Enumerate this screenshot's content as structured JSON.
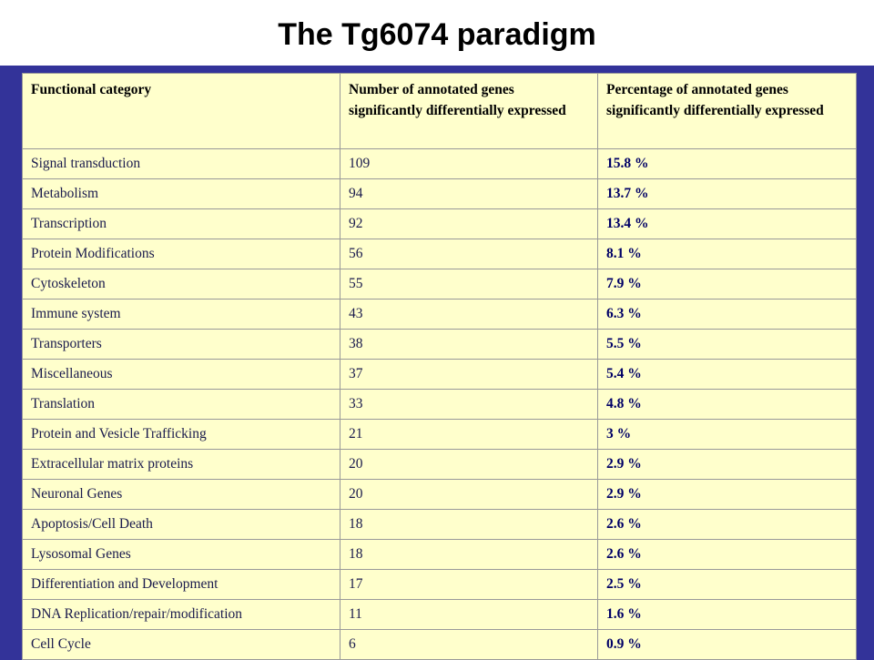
{
  "slide": {
    "title": "The Tg6074 paradigm"
  },
  "table": {
    "headers": [
      "Functional category",
      "Number of annotated genes significantly differentially expressed",
      "Percentage of annotated genes significantly differentially expressed"
    ],
    "rows": [
      {
        "category": "Signal transduction",
        "count": "109",
        "percent": "15.8 %"
      },
      {
        "category": "Metabolism",
        "count": "94",
        "percent": "13.7 %"
      },
      {
        "category": "Transcription",
        "count": "92",
        "percent": "13.4 %"
      },
      {
        "category": "Protein Modifications",
        "count": "56",
        "percent": "8.1 %"
      },
      {
        "category": "Cytoskeleton",
        "count": "55",
        "percent": "7.9 %"
      },
      {
        "category": "Immune system",
        "count": "43",
        "percent": "6.3 %"
      },
      {
        "category": "Transporters",
        "count": "38",
        "percent": "5.5 %"
      },
      {
        "category": "Miscellaneous",
        "count": "37",
        "percent": "5.4 %"
      },
      {
        "category": "Translation",
        "count": "33",
        "percent": "4.8 %"
      },
      {
        "category": "Protein and Vesicle Trafficking",
        "count": "21",
        "percent": "3 %"
      },
      {
        "category": "Extracellular matrix proteins",
        "count": "20",
        "percent": "2.9 %"
      },
      {
        "category": "Neuronal Genes",
        "count": "20",
        "percent": "2.9 %"
      },
      {
        "category": "Apoptosis/Cell Death",
        "count": "18",
        "percent": "2.6 %"
      },
      {
        "category": "Lysosomal Genes",
        "count": "18",
        "percent": "2.6 %"
      },
      {
        "category": "Differentiation and Development",
        "count": "17",
        "percent": "2.5 %"
      },
      {
        "category": "DNA Replication/repair/modification",
        "count": "11",
        "percent": "1.6 %"
      },
      {
        "category": "Cell Cycle",
        "count": "6",
        "percent": "0.9 %"
      }
    ]
  },
  "colors": {
    "background": "#333399",
    "title_band": "#ffffff",
    "table_fill": "#ffffcc",
    "grid": "#999999"
  }
}
